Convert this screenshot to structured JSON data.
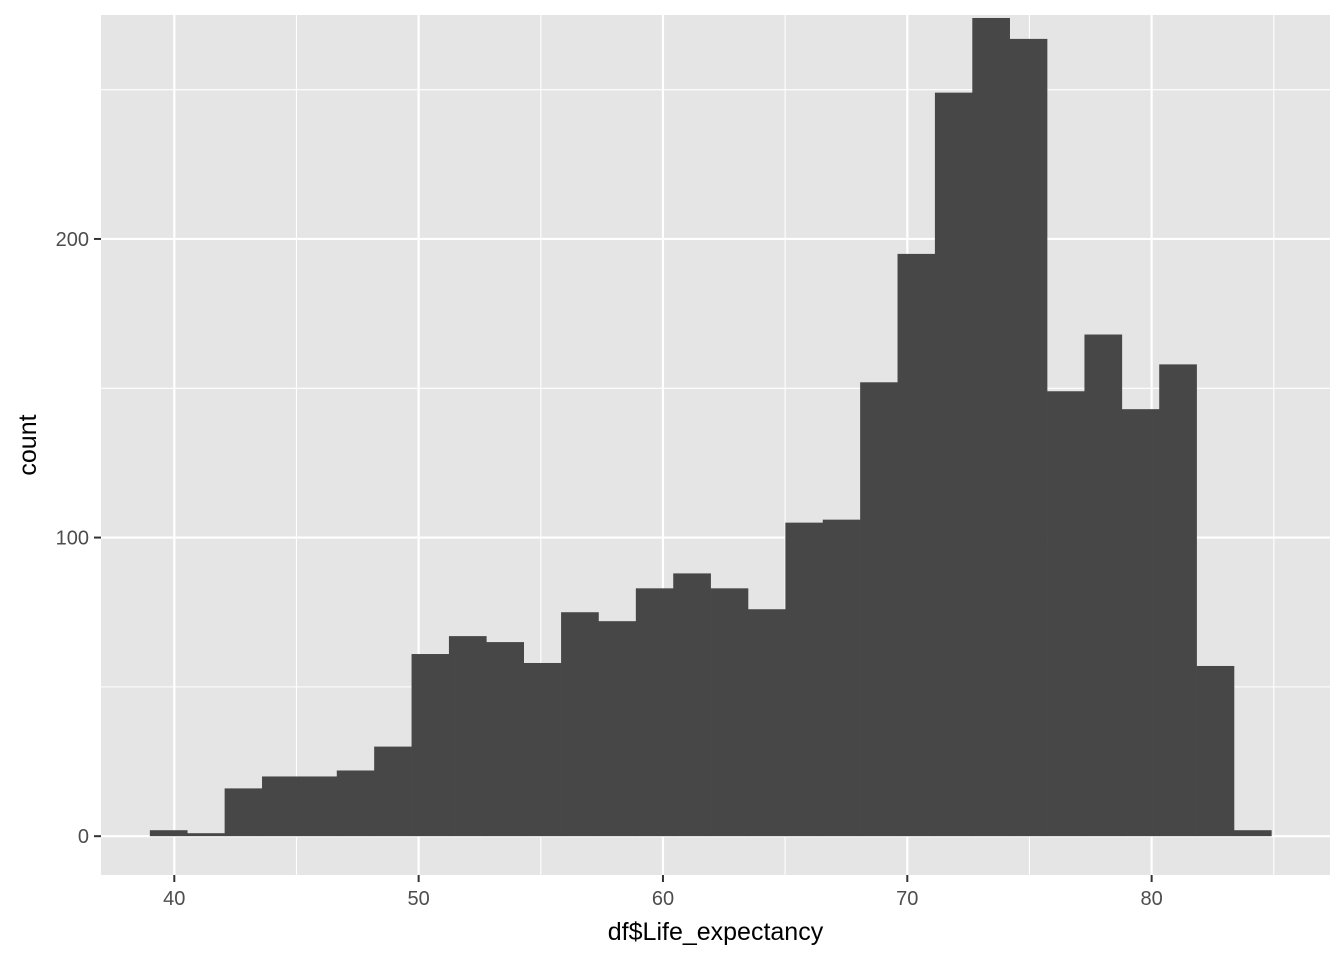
{
  "chart_data": {
    "type": "bar",
    "subtype": "histogram",
    "xlabel": "df$Life_expectancy",
    "ylabel": "count",
    "xlim": [
      37,
      87.3
    ],
    "ylim": [
      -13,
      275
    ],
    "x_ticks": [
      40,
      50,
      60,
      70,
      80
    ],
    "y_ticks": [
      0,
      100,
      200
    ],
    "grid": true,
    "bin_width": 1.53,
    "bins": [
      {
        "start": 39.0,
        "end": 40.53,
        "count": 2
      },
      {
        "start": 40.53,
        "end": 42.06,
        "count": 1
      },
      {
        "start": 42.06,
        "end": 43.59,
        "count": 16
      },
      {
        "start": 43.59,
        "end": 45.12,
        "count": 20
      },
      {
        "start": 45.12,
        "end": 46.65,
        "count": 20
      },
      {
        "start": 46.65,
        "end": 48.18,
        "count": 22
      },
      {
        "start": 48.18,
        "end": 49.71,
        "count": 30
      },
      {
        "start": 49.71,
        "end": 51.24,
        "count": 61
      },
      {
        "start": 51.24,
        "end": 52.77,
        "count": 67
      },
      {
        "start": 52.77,
        "end": 54.3,
        "count": 65
      },
      {
        "start": 54.3,
        "end": 55.83,
        "count": 58
      },
      {
        "start": 55.83,
        "end": 57.36,
        "count": 75
      },
      {
        "start": 57.36,
        "end": 58.89,
        "count": 72
      },
      {
        "start": 58.89,
        "end": 60.42,
        "count": 83
      },
      {
        "start": 60.42,
        "end": 61.95,
        "count": 88
      },
      {
        "start": 61.95,
        "end": 63.48,
        "count": 83
      },
      {
        "start": 63.48,
        "end": 65.01,
        "count": 76
      },
      {
        "start": 65.01,
        "end": 66.54,
        "count": 105
      },
      {
        "start": 66.54,
        "end": 68.07,
        "count": 106
      },
      {
        "start": 68.07,
        "end": 69.6,
        "count": 152
      },
      {
        "start": 69.6,
        "end": 71.13,
        "count": 195
      },
      {
        "start": 71.13,
        "end": 72.66,
        "count": 249
      },
      {
        "start": 72.66,
        "end": 74.19,
        "count": 274
      },
      {
        "start": 74.19,
        "end": 75.72,
        "count": 267
      },
      {
        "start": 75.72,
        "end": 77.25,
        "count": 149
      },
      {
        "start": 77.25,
        "end": 78.78,
        "count": 168
      },
      {
        "start": 78.78,
        "end": 80.31,
        "count": 143
      },
      {
        "start": 80.31,
        "end": 81.84,
        "count": 158
      },
      {
        "start": 81.84,
        "end": 83.37,
        "count": 57
      },
      {
        "start": 83.37,
        "end": 84.9,
        "count": 2
      }
    ],
    "colors": {
      "panel_background": "#e5e5e5",
      "grid": "#ffffff",
      "bar_fill": "#474747",
      "tick": "#333333"
    }
  }
}
